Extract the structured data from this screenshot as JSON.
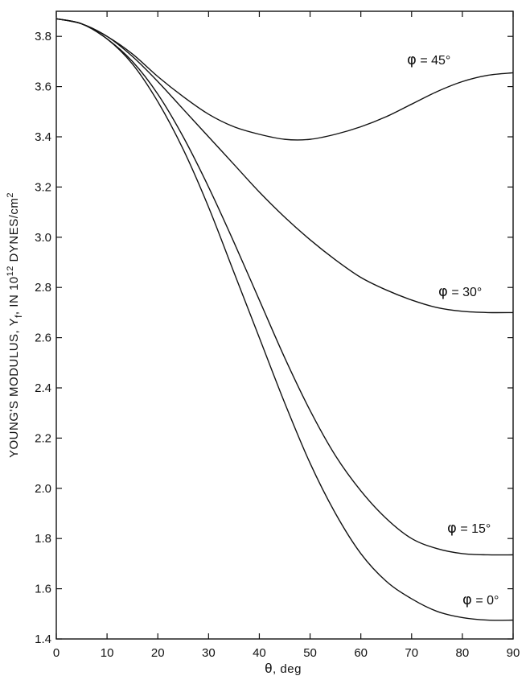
{
  "chart_data": {
    "type": "line",
    "xlabel_symbol": "θ",
    "xlabel_unit": ", deg",
    "ylabel_main": "YOUNG'S MODULUS, Y",
    "ylabel_sub": "f",
    "ylabel_mid": ", IN 10",
    "ylabel_exp": "12",
    "ylabel_unit": " DYNES/cm",
    "ylabel_unit_exp": "2",
    "xlim": [
      0,
      90
    ],
    "ylim": [
      1.4,
      3.9
    ],
    "xticks": [
      "0",
      "10",
      "20",
      "30",
      "40",
      "50",
      "60",
      "70",
      "80",
      "90"
    ],
    "yticks": [
      "1.4",
      "1.6",
      "1.8",
      "2.0",
      "2.2",
      "2.4",
      "2.6",
      "2.8",
      "3.0",
      "3.2",
      "3.4",
      "3.6",
      "3.8"
    ],
    "x": [
      0,
      5,
      10,
      15,
      20,
      25,
      30,
      35,
      40,
      45,
      50,
      55,
      60,
      65,
      70,
      75,
      80,
      85,
      90
    ],
    "series": [
      {
        "name": "φ = 45°",
        "symbol": "φ",
        "label_text": " = 45°",
        "values": [
          3.87,
          3.85,
          3.8,
          3.73,
          3.64,
          3.56,
          3.49,
          3.44,
          3.41,
          3.39,
          3.39,
          3.41,
          3.44,
          3.48,
          3.53,
          3.58,
          3.62,
          3.645,
          3.655
        ]
      },
      {
        "name": "φ = 30°",
        "symbol": "φ",
        "label_text": " = 30°",
        "values": [
          3.87,
          3.85,
          3.8,
          3.72,
          3.62,
          3.51,
          3.4,
          3.29,
          3.18,
          3.08,
          2.99,
          2.91,
          2.84,
          2.79,
          2.75,
          2.72,
          2.705,
          2.7,
          2.7
        ]
      },
      {
        "name": "φ = 15°",
        "symbol": "φ",
        "label_text": " = 15°",
        "values": [
          3.87,
          3.85,
          3.79,
          3.7,
          3.57,
          3.4,
          3.2,
          2.98,
          2.75,
          2.52,
          2.31,
          2.13,
          1.99,
          1.88,
          1.8,
          1.76,
          1.74,
          1.735,
          1.735
        ]
      },
      {
        "name": "φ = 0°",
        "symbol": "φ",
        "label_text": " = 0°",
        "values": [
          3.87,
          3.85,
          3.79,
          3.69,
          3.54,
          3.35,
          3.12,
          2.86,
          2.6,
          2.34,
          2.1,
          1.9,
          1.74,
          1.63,
          1.56,
          1.51,
          1.485,
          1.475,
          1.475
        ]
      }
    ],
    "grid": false,
    "legend": "inline labels at right"
  }
}
